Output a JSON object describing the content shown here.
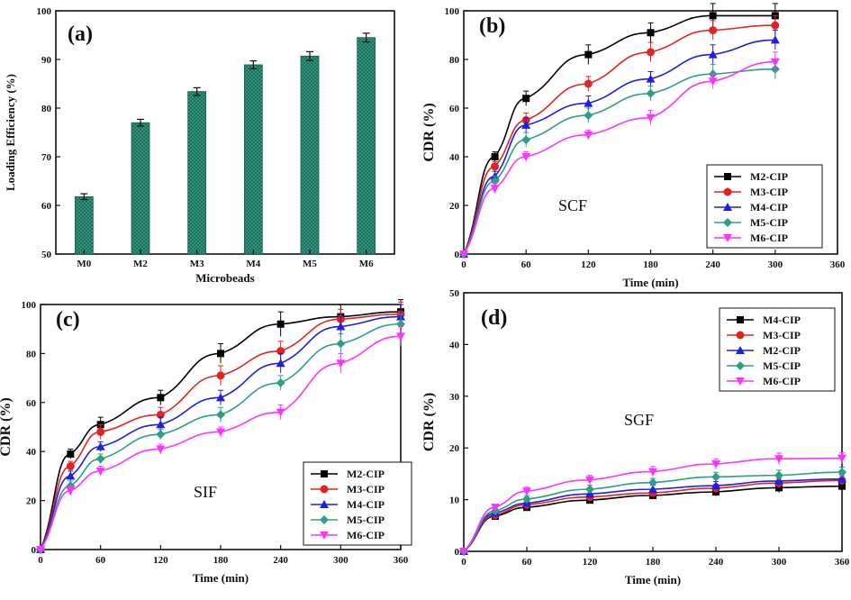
{
  "chart_data": [
    {
      "panel": "(a)",
      "type": "bar",
      "title": "",
      "xlabel": "Microbeads",
      "ylabel": "Loading Efficiency (%)",
      "categories": [
        "M0",
        "M2",
        "M3",
        "M4",
        "M5",
        "M6"
      ],
      "values": [
        61.8,
        77.0,
        83.4,
        88.9,
        90.7,
        94.5
      ],
      "errors": [
        0.6,
        0.7,
        0.8,
        0.8,
        0.9,
        0.9
      ],
      "ylim": [
        50,
        100
      ],
      "yticks": [
        50,
        60,
        70,
        80,
        90,
        100
      ],
      "bar_color": "#2e9e86"
    },
    {
      "panel": "(b)",
      "type": "line",
      "annotation": "SCF",
      "xlabel": "Time (min)",
      "ylabel": "CDR (%)",
      "xlim": [
        0,
        360
      ],
      "ylim": [
        0,
        100
      ],
      "xticks": [
        0,
        60,
        120,
        180,
        240,
        300,
        360
      ],
      "yticks": [
        0,
        20,
        40,
        60,
        80,
        100
      ],
      "x": [
        0,
        30,
        60,
        120,
        180,
        240,
        300
      ],
      "series": [
        {
          "name": "M2-CIP",
          "color": "#000000",
          "marker": "square",
          "values": [
            0,
            40,
            64,
            82,
            91,
            98,
            98
          ],
          "errors": [
            0,
            2,
            3,
            4,
            4,
            5,
            5
          ]
        },
        {
          "name": "M3-CIP",
          "color": "#e32222",
          "marker": "circle",
          "values": [
            0,
            36,
            55,
            70,
            83,
            92,
            94
          ],
          "errors": [
            0,
            2,
            3,
            3,
            4,
            4,
            4
          ]
        },
        {
          "name": "M4-CIP",
          "color": "#1f1fe0",
          "marker": "triangle",
          "values": [
            0,
            32,
            53,
            62,
            72,
            82,
            88
          ],
          "errors": [
            0,
            2,
            3,
            3,
            3,
            4,
            4
          ]
        },
        {
          "name": "M5-CIP",
          "color": "#2e9e86",
          "marker": "diamond",
          "values": [
            0,
            30,
            47,
            57,
            66,
            74,
            76
          ],
          "errors": [
            0,
            2,
            3,
            3,
            3,
            4,
            4
          ]
        },
        {
          "name": "M6-CIP",
          "color": "#ff33ff",
          "marker": "triangle-down",
          "values": [
            0,
            27,
            40,
            49,
            56,
            71,
            79
          ],
          "errors": [
            0,
            2,
            2,
            2,
            3,
            3,
            4
          ]
        }
      ]
    },
    {
      "panel": "(c)",
      "type": "line",
      "annotation": "SIF",
      "xlabel": "Time (min)",
      "ylabel": "CDR (%)",
      "xlim": [
        0,
        360
      ],
      "ylim": [
        0,
        100
      ],
      "xticks": [
        0,
        60,
        120,
        180,
        240,
        300,
        360
      ],
      "yticks": [
        0,
        20,
        40,
        60,
        80,
        100
      ],
      "x": [
        0,
        30,
        60,
        120,
        180,
        240,
        300,
        360
      ],
      "series": [
        {
          "name": "M2-CIP",
          "color": "#000000",
          "marker": "square",
          "values": [
            0,
            39,
            51,
            62,
            80,
            92,
            95,
            97
          ],
          "errors": [
            0,
            2,
            3,
            3,
            4,
            5,
            5,
            5
          ]
        },
        {
          "name": "M3-CIP",
          "color": "#e32222",
          "marker": "circle",
          "values": [
            0,
            34,
            48,
            55,
            71,
            81,
            94,
            96
          ],
          "errors": [
            0,
            2,
            3,
            3,
            4,
            4,
            4,
            5
          ]
        },
        {
          "name": "M4-CIP",
          "color": "#1f1fe0",
          "marker": "triangle",
          "values": [
            0,
            30,
            42,
            51,
            62,
            76,
            91,
            95
          ],
          "errors": [
            0,
            2,
            2,
            3,
            3,
            4,
            4,
            5
          ]
        },
        {
          "name": "M5-CIP",
          "color": "#2e9e86",
          "marker": "diamond",
          "values": [
            0,
            26,
            37,
            47,
            55,
            68,
            84,
            92
          ],
          "errors": [
            0,
            2,
            2,
            2,
            3,
            3,
            4,
            4
          ]
        },
        {
          "name": "M6-CIP",
          "color": "#ff33ff",
          "marker": "triangle-down",
          "values": [
            0,
            24,
            32,
            41,
            48,
            56,
            76,
            87
          ],
          "errors": [
            0,
            2,
            2,
            2,
            2,
            3,
            4,
            4
          ]
        }
      ]
    },
    {
      "panel": "(d)",
      "type": "line",
      "annotation": "SGF",
      "xlabel": "Time (min)",
      "ylabel": "CDR (%)",
      "xlim": [
        0,
        360
      ],
      "ylim": [
        0,
        50
      ],
      "xticks": [
        0,
        60,
        120,
        180,
        240,
        300,
        360
      ],
      "yticks": [
        0,
        10,
        20,
        30,
        40,
        50
      ],
      "x": [
        0,
        30,
        60,
        120,
        180,
        240,
        300,
        360
      ],
      "series": [
        {
          "name": "M4-CIP",
          "color": "#000000",
          "marker": "square",
          "values": [
            0,
            6.8,
            8.5,
            9.9,
            10.8,
            11.5,
            12.3,
            12.6
          ],
          "errors": [
            0,
            0.5,
            0.6,
            0.6,
            0.7,
            0.8,
            0.9,
            0.9
          ]
        },
        {
          "name": "M3-CIP",
          "color": "#e32222",
          "marker": "circle",
          "values": [
            0,
            7.0,
            9.0,
            10.5,
            11.3,
            12.2,
            13.2,
            13.7
          ],
          "errors": [
            0,
            0.5,
            0.6,
            0.7,
            0.7,
            0.8,
            0.9,
            0.9
          ]
        },
        {
          "name": "M2-CIP",
          "color": "#1f1fe0",
          "marker": "triangle",
          "values": [
            0,
            7.4,
            9.3,
            11.1,
            12.0,
            12.7,
            13.6,
            14.0
          ],
          "errors": [
            0,
            0.5,
            0.6,
            0.7,
            0.8,
            0.8,
            0.9,
            0.9
          ]
        },
        {
          "name": "M5-CIP",
          "color": "#2e9e86",
          "marker": "diamond",
          "values": [
            0,
            7.8,
            10.1,
            12.0,
            13.3,
            14.4,
            14.7,
            15.3
          ],
          "errors": [
            0,
            0.5,
            0.7,
            0.8,
            0.8,
            0.9,
            1.0,
            1.0
          ]
        },
        {
          "name": "M6-CIP",
          "color": "#ff33ff",
          "marker": "triangle-down",
          "values": [
            0,
            8.5,
            11.6,
            13.8,
            15.4,
            16.9,
            17.9,
            18.0
          ],
          "errors": [
            0,
            0.6,
            0.8,
            0.9,
            1.0,
            1.0,
            1.1,
            1.1
          ]
        }
      ]
    }
  ]
}
